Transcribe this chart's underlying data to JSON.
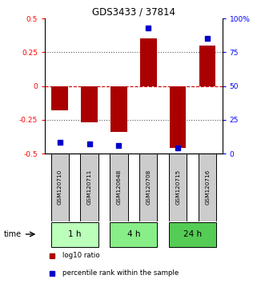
{
  "title": "GDS3433 / 37814",
  "samples": [
    "GSM120710",
    "GSM120711",
    "GSM120648",
    "GSM120708",
    "GSM120715",
    "GSM120716"
  ],
  "log10_ratio": [
    -0.18,
    -0.27,
    -0.34,
    0.35,
    -0.46,
    0.3
  ],
  "percentile_rank": [
    8,
    7,
    6,
    93,
    4,
    85
  ],
  "time_groups": [
    {
      "label": "1 h",
      "samples": [
        0,
        1
      ],
      "color": "#bbffbb"
    },
    {
      "label": "4 h",
      "samples": [
        2,
        3
      ],
      "color": "#88ee88"
    },
    {
      "label": "24 h",
      "samples": [
        4,
        5
      ],
      "color": "#55cc55"
    }
  ],
  "bar_color": "#aa0000",
  "dot_color": "#0000cc",
  "ylim_left": [
    -0.5,
    0.5
  ],
  "ylim_right": [
    0,
    100
  ],
  "yticks_left": [
    -0.5,
    -0.25,
    0,
    0.25,
    0.5
  ],
  "yticks_right": [
    0,
    25,
    50,
    75,
    100
  ],
  "ytick_labels_left": [
    "-0.5",
    "-0.25",
    "0",
    "0.25",
    "0.5"
  ],
  "ytick_labels_right": [
    "0",
    "25",
    "50",
    "75",
    "100%"
  ],
  "hline_zero_color": "#cc0000",
  "hline_other_color": "#555555",
  "legend_items": [
    {
      "label": "log10 ratio",
      "color": "#aa0000"
    },
    {
      "label": "percentile rank within the sample",
      "color": "#0000cc"
    }
  ],
  "bar_width": 0.55,
  "bg_color": "#ffffff",
  "sample_box_color": "#cccccc"
}
